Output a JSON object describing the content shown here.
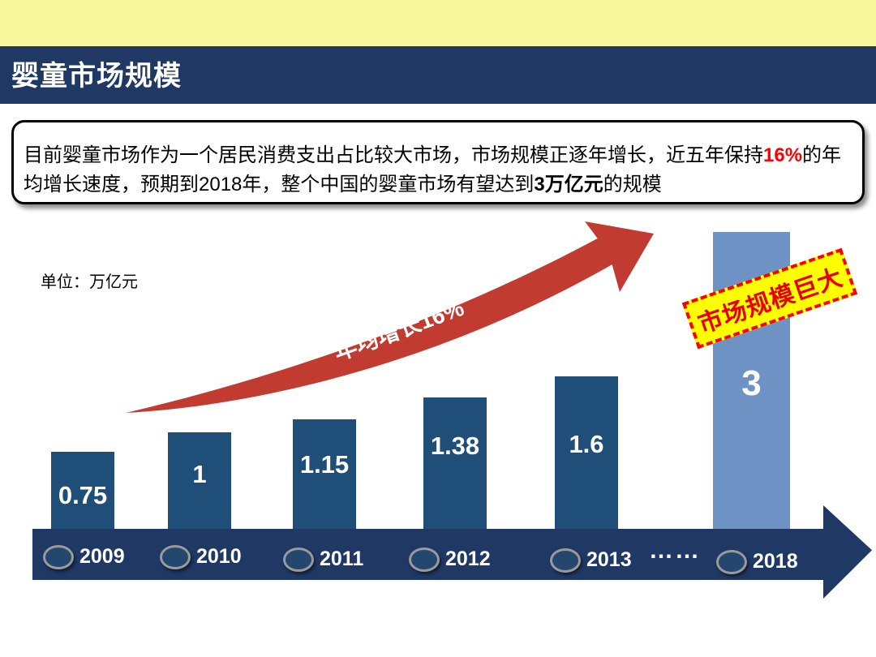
{
  "slide": {
    "title": "婴童市场规模",
    "intro": {
      "text_before_pct": "目前婴童市场作为一个居民消费支出占比较大市场，市场规模正逐年增长，近五年保持",
      "pct": "16%",
      "text_after_pct": "的年均增长速度，预期到2018年，整个中国的婴童市场有望达到",
      "amount": "3万亿元",
      "text_after_amount": "的规模"
    },
    "unit_label": "单位：万亿元",
    "growth_label": "年均增长16%",
    "badge_label": "市场规模巨大",
    "ellipsis": "……",
    "colors": {
      "top_accent": "#F7F79E",
      "header_navy": "#1F3864",
      "bar_blue": "#1F4E79",
      "bar_highlight_blue": "#6E92C4",
      "axis_navy": "#1F3864",
      "arrow_red": "#C13B30",
      "badge_bg": "#FFFF00",
      "badge_border": "#FF0000",
      "badge_text": "#E60000",
      "pct_red": "#FF0000"
    }
  },
  "chart_data": {
    "type": "bar",
    "title": "婴童市场规模",
    "unit": "万亿元",
    "categories": [
      "2009",
      "2010",
      "2011",
      "2012",
      "2013",
      "2018"
    ],
    "values": [
      0.75,
      1,
      1.15,
      1.38,
      1.6,
      3
    ],
    "annotation": "年均增长16%",
    "badge": "市场规模巨大",
    "x_gap_marker": "……",
    "ylabel": "万亿元",
    "legend": "none",
    "grid": "off"
  }
}
